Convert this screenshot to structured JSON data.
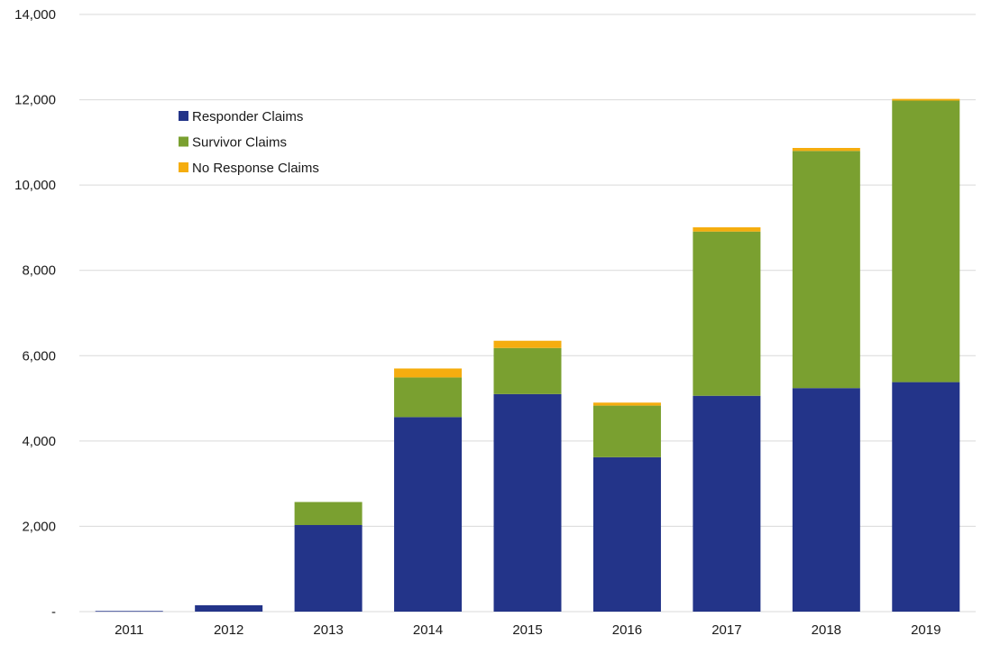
{
  "chart_data": {
    "type": "bar",
    "stacked": true,
    "categories": [
      "2011",
      "2012",
      "2013",
      "2014",
      "2015",
      "2016",
      "2017",
      "2018",
      "2019"
    ],
    "series": [
      {
        "name": "Responder Claims",
        "color": "#233489",
        "values": [
          15,
          150,
          2030,
          4560,
          5100,
          3620,
          5060,
          5240,
          5380
        ]
      },
      {
        "name": "Survivor Claims",
        "color": "#7aa030",
        "values": [
          0,
          0,
          540,
          930,
          1080,
          1210,
          3850,
          5560,
          6600
        ]
      },
      {
        "name": "No Response Claims",
        "color": "#f5ad0f",
        "values": [
          0,
          0,
          0,
          210,
          170,
          70,
          100,
          70,
          40
        ]
      }
    ],
    "y_ticks": [
      "-",
      "2,000",
      "4,000",
      "6,000",
      "8,000",
      "10,000",
      "12,000",
      "14,000"
    ],
    "ylim": [
      0,
      14000
    ],
    "title": "",
    "xlabel": "",
    "ylabel": "",
    "grid": true,
    "legend_position": "upper-left-inside"
  }
}
